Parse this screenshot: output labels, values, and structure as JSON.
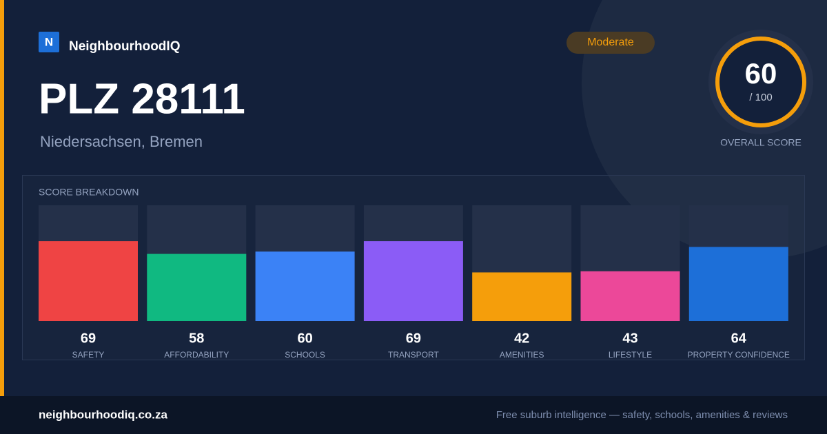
{
  "header": {
    "logo_letter": "N",
    "brand": "NeighbourhoodIQ",
    "badge": "Moderate",
    "title": "PLZ 28111",
    "subtitle": "Niedersachsen, Bremen"
  },
  "overall": {
    "score": "60",
    "out_of": "/ 100",
    "label": "OVERALL SCORE"
  },
  "chart_data": {
    "type": "bar",
    "title": "SCORE BREAKDOWN",
    "categories": [
      "SAFETY",
      "AFFORDABILITY",
      "SCHOOLS",
      "TRANSPORT",
      "AMENITIES",
      "LIFESTYLE",
      "PROPERTY CONFIDENCE"
    ],
    "values": [
      69,
      58,
      60,
      69,
      42,
      43,
      64
    ],
    "colors": [
      "#ef4444",
      "#10b981",
      "#3b82f6",
      "#8b5cf6",
      "#f59e0b",
      "#ec4899",
      "#1d6fd8"
    ],
    "ylim": [
      0,
      100
    ]
  },
  "footer": {
    "site": "neighbourhoodiq.co.za",
    "tagline": "Free suburb intelligence — safety, schools, amenities & reviews"
  }
}
